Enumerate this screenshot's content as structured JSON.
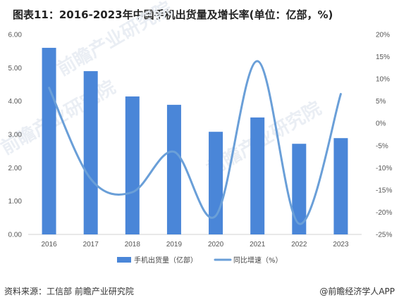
{
  "chart_data": {
    "type": "bar",
    "title": "图表11：2016-2023年中国手机出货量及增长率(单位：亿部，%)",
    "categories": [
      "2016",
      "2017",
      "2018",
      "2019",
      "2020",
      "2021",
      "2022",
      "2023"
    ],
    "series": [
      {
        "name": "手机出货量（亿部）",
        "type": "bar",
        "axis": "left",
        "color": "#4a86d8",
        "values": [
          5.6,
          4.9,
          4.14,
          3.89,
          3.08,
          3.51,
          2.72,
          2.89
        ]
      },
      {
        "name": "同比增速（%）",
        "type": "line",
        "axis": "right",
        "color": "#6a9fd8",
        "values": [
          8,
          -12.5,
          -15.5,
          -6.4,
          -20.8,
          14,
          -22.6,
          6.6
        ]
      }
    ],
    "y_left": {
      "ylim": [
        0,
        6
      ],
      "ticks": [
        "0.00",
        "1.00",
        "2.00",
        "3.00",
        "4.00",
        "5.00",
        "6.00"
      ]
    },
    "y_right": {
      "ylim": [
        -25,
        20
      ],
      "ticks": [
        "-25%",
        "-20%",
        "-15%",
        "-10%",
        "-5%",
        "0%",
        "5%",
        "10%",
        "15%",
        "20%"
      ]
    },
    "grid": false,
    "legend": "bottom"
  },
  "footer": {
    "source": "资料来源：工信部 前瞻产业研究院",
    "brand": "@前瞻经济学人APP"
  },
  "watermark": "前瞻产业研究院"
}
